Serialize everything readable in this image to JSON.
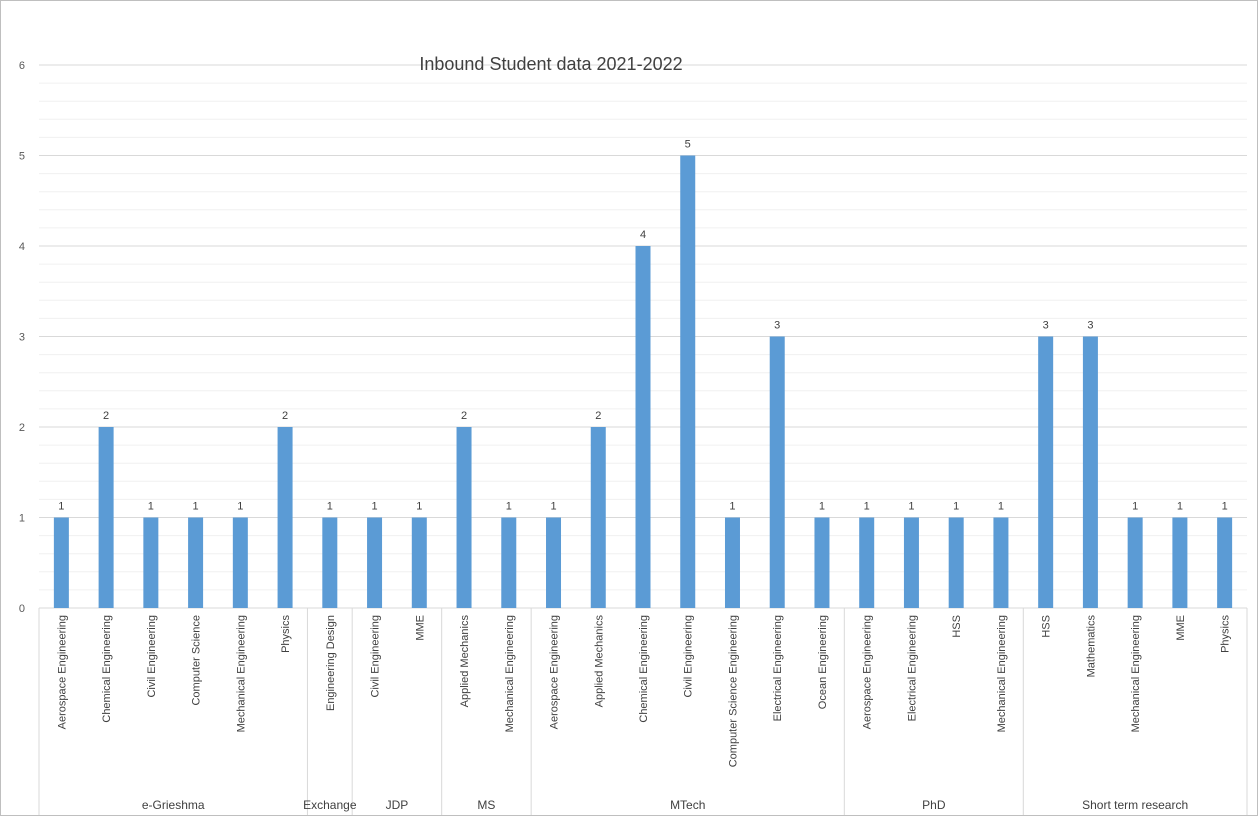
{
  "chart_data": {
    "type": "bar",
    "title": "Inbound Student data 2021-2022",
    "xlabel": "",
    "ylabel": "",
    "ylim": [
      0,
      6
    ],
    "yticks": [
      0,
      1,
      2,
      3,
      4,
      5,
      6
    ],
    "grid": true,
    "legend": "none",
    "bar_color": "#5b9bd5",
    "groups": [
      {
        "name": "e-Grieshma",
        "count": 6
      },
      {
        "name": "Exchange",
        "count": 1
      },
      {
        "name": "JDP",
        "count": 2
      },
      {
        "name": "MS",
        "count": 2
      },
      {
        "name": "MTech",
        "count": 7
      },
      {
        "name": "PhD",
        "count": 4
      },
      {
        "name": "Short term research",
        "count": 5
      }
    ],
    "categories": [
      "Aerospace Engineering",
      "Chemical Engineering",
      "Civil Engineering",
      "Computer Science",
      "Mechanical Engineering",
      "Physics",
      "Engineering Design",
      "Civil Engineering",
      "MME",
      "Applied Mechanics",
      "Mechanical Engineering",
      "Aerospace Engineering",
      "Applied Mechanics",
      "Chemical Engineering",
      "Civil Engineering",
      "Computer Science Engineering",
      "Electrical Engineering",
      "Ocean Engineering",
      "Aerospace Engineering",
      "Electrical Engineering",
      "HSS",
      "Mechanical Engineering",
      "HSS",
      "Mathematics",
      "Mechanical Engineering",
      "MME",
      "Physics"
    ],
    "values": [
      1,
      2,
      1,
      1,
      1,
      2,
      1,
      1,
      1,
      2,
      1,
      1,
      2,
      4,
      5,
      1,
      3,
      1,
      1,
      1,
      1,
      1,
      3,
      3,
      1,
      1,
      1
    ]
  }
}
